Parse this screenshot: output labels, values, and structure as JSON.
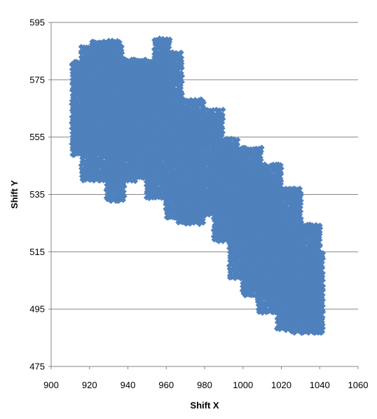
{
  "chart_data": {
    "type": "scatter",
    "title": "",
    "xlabel": "Shift X",
    "ylabel": "Shift Y",
    "xlim": [
      900,
      1060
    ],
    "ylim": [
      475,
      595
    ],
    "xticks": [
      900,
      920,
      940,
      960,
      980,
      1000,
      1020,
      1040,
      1060
    ],
    "yticks": [
      475,
      495,
      515,
      535,
      555,
      575,
      595
    ],
    "grid": {
      "horizontal": true,
      "vertical": false
    },
    "legend": "none",
    "marker": "diamond",
    "colors": {
      "series": "#4F81BD",
      "grid": "#868686",
      "axis": "#868686"
    },
    "series": [
      {
        "name": "",
        "regions": [
          {
            "x_range": [
              911,
              923
            ],
            "y_range": [
              549,
              582
            ]
          },
          {
            "x_range": [
              916,
              938
            ],
            "y_range": [
              540,
              587
            ]
          },
          {
            "x_range": [
              921,
              936
            ],
            "y_range": [
              552,
              589
            ]
          },
          {
            "x_range": [
              929,
              938
            ],
            "y_range": [
              533,
              560
            ]
          },
          {
            "x_range": [
              932,
              945
            ],
            "y_range": [
              540,
              582
            ]
          },
          {
            "x_range": [
              937,
              952
            ],
            "y_range": [
              548,
              580
            ]
          },
          {
            "x_range": [
              944,
              958
            ],
            "y_range": [
              541,
              582
            ]
          },
          {
            "x_range": [
              950,
              964
            ],
            "y_range": [
              534,
              578
            ]
          },
          {
            "x_range": [
              954,
              962
            ],
            "y_range": [
              565,
              590
            ]
          },
          {
            "x_range": [
              958,
              968
            ],
            "y_range": [
              560,
              585
            ]
          },
          {
            "x_range": [
              960,
              975
            ],
            "y_range": [
              527,
              560
            ]
          },
          {
            "x_range": [
              966,
              980
            ],
            "y_range": [
              525,
              568
            ]
          },
          {
            "x_range": [
              975,
              990
            ],
            "y_range": [
              528,
              565
            ]
          },
          {
            "x_range": [
              985,
              998
            ],
            "y_range": [
              519,
              555
            ]
          },
          {
            "x_range": [
              988,
              1000
            ],
            "y_range": [
              522,
              548
            ]
          },
          {
            "x_range": [
              993,
              1010
            ],
            "y_range": [
              506,
              552
            ]
          },
          {
            "x_range": [
              1000,
              1020
            ],
            "y_range": [
              500,
              546
            ]
          },
          {
            "x_range": [
              1008,
              1030
            ],
            "y_range": [
              494,
              538
            ]
          },
          {
            "x_range": [
              1018,
              1040
            ],
            "y_range": [
              488,
              525
            ]
          },
          {
            "x_range": [
              1025,
              1042
            ],
            "y_range": [
              487,
              515
            ]
          }
        ]
      }
    ]
  }
}
